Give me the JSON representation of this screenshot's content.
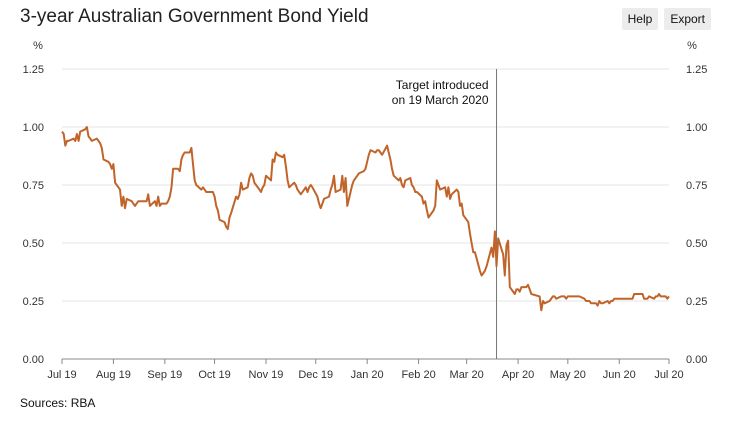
{
  "title": "3-year Australian Government Bond Yield",
  "toolbar": {
    "help_label": "Help",
    "export_label": "Export"
  },
  "source": "Sources: RBA",
  "colors": {
    "series": "#c0642a",
    "grid": "#e6e6e6",
    "axis": "#888888",
    "annotation_line": "#777777"
  },
  "chart_data": {
    "type": "line",
    "title": "3-year Australian Government Bond Yield",
    "ylabel_left": "%",
    "ylabel_right": "%",
    "ylim": [
      0,
      1.25
    ],
    "yticks": [
      "0.00",
      "0.25",
      "0.50",
      "0.75",
      "1.00",
      "1.25"
    ],
    "ytick_values": [
      0,
      0.25,
      0.5,
      0.75,
      1.0,
      1.25
    ],
    "xlim": [
      "2019-07-01",
      "2020-07-01"
    ],
    "xticks": [
      {
        "label": "Jul 19",
        "date": "2019-07-01"
      },
      {
        "label": "Aug 19",
        "date": "2019-08-01"
      },
      {
        "label": "Sep 19",
        "date": "2019-09-01"
      },
      {
        "label": "Oct 19",
        "date": "2019-10-01"
      },
      {
        "label": "Nov 19",
        "date": "2019-11-01"
      },
      {
        "label": "Dec 19",
        "date": "2019-12-01"
      },
      {
        "label": "Jan 20",
        "date": "2020-01-01"
      },
      {
        "label": "Feb 20",
        "date": "2020-02-01"
      },
      {
        "label": "Mar 20",
        "date": "2020-03-01"
      },
      {
        "label": "Apr 20",
        "date": "2020-04-01"
      },
      {
        "label": "May 20",
        "date": "2020-05-01"
      },
      {
        "label": "Jun 20",
        "date": "2020-06-01"
      },
      {
        "label": "Jul 20",
        "date": "2020-07-01"
      }
    ],
    "grid": true,
    "annotation": {
      "date": "2020-03-19",
      "text_lines": [
        "Target introduced",
        "on 19 March 2020"
      ]
    },
    "series": [
      {
        "x": [
          "2019-07-01",
          "2019-07-02",
          "2019-07-03",
          "2019-07-04",
          "2019-07-05",
          "2019-07-08",
          "2019-07-09",
          "2019-07-10",
          "2019-07-11",
          "2019-07-12",
          "2019-07-15",
          "2019-07-16",
          "2019-07-17",
          "2019-07-18",
          "2019-07-19",
          "2019-07-22",
          "2019-07-23",
          "2019-07-24",
          "2019-07-25",
          "2019-07-26",
          "2019-07-29",
          "2019-07-30",
          "2019-07-31",
          "2019-08-01",
          "2019-08-02",
          "2019-08-05",
          "2019-08-06",
          "2019-08-07",
          "2019-08-08",
          "2019-08-09",
          "2019-08-12",
          "2019-08-13",
          "2019-08-14",
          "2019-08-15",
          "2019-08-16",
          "2019-08-19",
          "2019-08-20",
          "2019-08-21",
          "2019-08-22",
          "2019-08-23",
          "2019-08-26",
          "2019-08-27",
          "2019-08-28",
          "2019-08-29",
          "2019-08-30",
          "2019-09-02",
          "2019-09-03",
          "2019-09-04",
          "2019-09-05",
          "2019-09-06",
          "2019-09-09",
          "2019-09-10",
          "2019-09-11",
          "2019-09-12",
          "2019-09-13",
          "2019-09-16",
          "2019-09-17",
          "2019-09-18",
          "2019-09-19",
          "2019-09-20",
          "2019-09-23",
          "2019-09-24",
          "2019-09-25",
          "2019-09-26",
          "2019-09-27",
          "2019-09-30",
          "2019-10-01",
          "2019-10-02",
          "2019-10-03",
          "2019-10-04",
          "2019-10-07",
          "2019-10-08",
          "2019-10-09",
          "2019-10-10",
          "2019-10-11",
          "2019-10-14",
          "2019-10-15",
          "2019-10-16",
          "2019-10-17",
          "2019-10-18",
          "2019-10-21",
          "2019-10-22",
          "2019-10-23",
          "2019-10-24",
          "2019-10-25",
          "2019-10-28",
          "2019-10-29",
          "2019-10-30",
          "2019-10-31",
          "2019-11-01",
          "2019-11-04",
          "2019-11-05",
          "2019-11-06",
          "2019-11-07",
          "2019-11-08",
          "2019-11-11",
          "2019-11-12",
          "2019-11-13",
          "2019-11-14",
          "2019-11-15",
          "2019-11-18",
          "2019-11-19",
          "2019-11-20",
          "2019-11-21",
          "2019-11-22",
          "2019-11-25",
          "2019-11-26",
          "2019-11-27",
          "2019-11-28",
          "2019-11-29",
          "2019-12-02",
          "2019-12-03",
          "2019-12-04",
          "2019-12-05",
          "2019-12-06",
          "2019-12-09",
          "2019-12-10",
          "2019-12-11",
          "2019-12-12",
          "2019-12-13",
          "2019-12-16",
          "2019-12-17",
          "2019-12-18",
          "2019-12-19",
          "2019-12-20",
          "2019-12-23",
          "2019-12-24",
          "2019-12-27",
          "2019-12-30",
          "2019-12-31",
          "2020-01-02",
          "2020-01-03",
          "2020-01-06",
          "2020-01-07",
          "2020-01-08",
          "2020-01-09",
          "2020-01-10",
          "2020-01-13",
          "2020-01-14",
          "2020-01-15",
          "2020-01-16",
          "2020-01-17",
          "2020-01-20",
          "2020-01-21",
          "2020-01-22",
          "2020-01-23",
          "2020-01-24",
          "2020-01-27",
          "2020-01-28",
          "2020-01-29",
          "2020-01-30",
          "2020-01-31",
          "2020-02-03",
          "2020-02-04",
          "2020-02-05",
          "2020-02-06",
          "2020-02-07",
          "2020-02-10",
          "2020-02-11",
          "2020-02-12",
          "2020-02-13",
          "2020-02-14",
          "2020-02-17",
          "2020-02-18",
          "2020-02-19",
          "2020-02-20",
          "2020-02-21",
          "2020-02-24",
          "2020-02-25",
          "2020-02-26",
          "2020-02-27",
          "2020-02-28",
          "2020-03-02",
          "2020-03-03",
          "2020-03-04",
          "2020-03-05",
          "2020-03-06",
          "2020-03-09",
          "2020-03-10",
          "2020-03-11",
          "2020-03-12",
          "2020-03-13",
          "2020-03-16",
          "2020-03-17",
          "2020-03-18",
          "2020-03-19",
          "2020-03-20",
          "2020-03-23",
          "2020-03-24",
          "2020-03-25",
          "2020-03-26",
          "2020-03-27",
          "2020-03-30",
          "2020-03-31",
          "2020-04-01",
          "2020-04-02",
          "2020-04-03",
          "2020-04-06",
          "2020-04-07",
          "2020-04-08",
          "2020-04-09",
          "2020-04-14",
          "2020-04-15",
          "2020-04-16",
          "2020-04-17",
          "2020-04-20",
          "2020-04-21",
          "2020-04-22",
          "2020-04-23",
          "2020-04-24",
          "2020-04-27",
          "2020-04-28",
          "2020-04-29",
          "2020-04-30",
          "2020-05-01",
          "2020-05-04",
          "2020-05-05",
          "2020-05-06",
          "2020-05-07",
          "2020-05-08",
          "2020-05-11",
          "2020-05-12",
          "2020-05-13",
          "2020-05-14",
          "2020-05-15",
          "2020-05-18",
          "2020-05-19",
          "2020-05-20",
          "2020-05-21",
          "2020-05-22",
          "2020-05-25",
          "2020-05-26",
          "2020-05-27",
          "2020-05-28",
          "2020-05-29",
          "2020-06-01",
          "2020-06-02",
          "2020-06-03",
          "2020-06-04",
          "2020-06-05",
          "2020-06-09",
          "2020-06-10",
          "2020-06-11",
          "2020-06-12",
          "2020-06-15",
          "2020-06-16",
          "2020-06-17",
          "2020-06-18",
          "2020-06-19",
          "2020-06-22",
          "2020-06-23",
          "2020-06-24",
          "2020-06-25",
          "2020-06-26",
          "2020-06-29",
          "2020-06-30",
          "2020-07-01"
        ],
        "y": [
          0.98,
          0.97,
          0.92,
          0.94,
          0.94,
          0.95,
          0.94,
          0.97,
          0.94,
          0.98,
          0.99,
          1.0,
          0.96,
          0.95,
          0.94,
          0.95,
          0.94,
          0.93,
          0.91,
          0.86,
          0.85,
          0.84,
          0.82,
          0.84,
          0.76,
          0.73,
          0.66,
          0.7,
          0.65,
          0.69,
          0.68,
          0.67,
          0.66,
          0.67,
          0.68,
          0.68,
          0.68,
          0.68,
          0.71,
          0.66,
          0.68,
          0.66,
          0.7,
          0.66,
          0.67,
          0.67,
          0.68,
          0.7,
          0.74,
          0.82,
          0.82,
          0.81,
          0.86,
          0.88,
          0.89,
          0.89,
          0.91,
          0.84,
          0.77,
          0.75,
          0.73,
          0.74,
          0.73,
          0.72,
          0.72,
          0.72,
          0.7,
          0.66,
          0.64,
          0.6,
          0.59,
          0.57,
          0.56,
          0.61,
          0.63,
          0.7,
          0.69,
          0.71,
          0.76,
          0.73,
          0.74,
          0.78,
          0.8,
          0.79,
          0.76,
          0.73,
          0.72,
          0.74,
          0.75,
          0.79,
          0.77,
          0.86,
          0.85,
          0.89,
          0.88,
          0.87,
          0.88,
          0.83,
          0.77,
          0.74,
          0.76,
          0.75,
          0.73,
          0.72,
          0.71,
          0.74,
          0.72,
          0.74,
          0.75,
          0.74,
          0.7,
          0.67,
          0.65,
          0.67,
          0.69,
          0.7,
          0.73,
          0.75,
          0.79,
          0.72,
          0.73,
          0.79,
          0.72,
          0.78,
          0.66,
          0.75,
          0.77,
          0.8,
          0.81,
          0.82,
          0.88,
          0.9,
          0.89,
          0.9,
          0.9,
          0.89,
          0.88,
          0.92,
          0.89,
          0.86,
          0.82,
          0.79,
          0.77,
          0.78,
          0.75,
          0.74,
          0.77,
          0.78,
          0.75,
          0.74,
          0.72,
          0.72,
          0.7,
          0.67,
          0.68,
          0.64,
          0.61,
          0.64,
          0.66,
          0.77,
          0.75,
          0.73,
          0.74,
          0.7,
          0.74,
          0.69,
          0.71,
          0.73,
          0.72,
          0.66,
          0.67,
          0.62,
          0.59,
          0.54,
          0.5,
          0.46,
          0.46,
          0.38,
          0.36,
          0.37,
          0.38,
          0.4,
          0.48,
          0.44,
          0.55,
          0.4,
          0.52,
          0.45,
          0.36,
          0.49,
          0.51,
          0.31,
          0.28,
          0.3,
          0.3,
          0.29,
          0.31,
          0.31,
          0.32,
          0.3,
          0.28,
          0.27,
          0.21,
          0.25,
          0.24,
          0.25,
          0.26,
          0.27,
          0.27,
          0.26,
          0.27,
          0.27,
          0.27,
          0.26,
          0.27,
          0.27,
          0.27,
          0.27,
          0.27,
          0.27,
          0.26,
          0.25,
          0.25,
          0.25,
          0.24,
          0.24,
          0.23,
          0.25,
          0.24,
          0.24,
          0.25,
          0.24,
          0.25,
          0.25,
          0.26,
          0.26,
          0.26,
          0.26,
          0.26,
          0.26,
          0.26,
          0.28,
          0.28,
          0.28,
          0.28,
          0.26,
          0.26,
          0.26,
          0.27,
          0.26,
          0.27,
          0.27,
          0.28,
          0.27,
          0.27,
          0.26,
          0.27
        ]
      }
    ]
  }
}
